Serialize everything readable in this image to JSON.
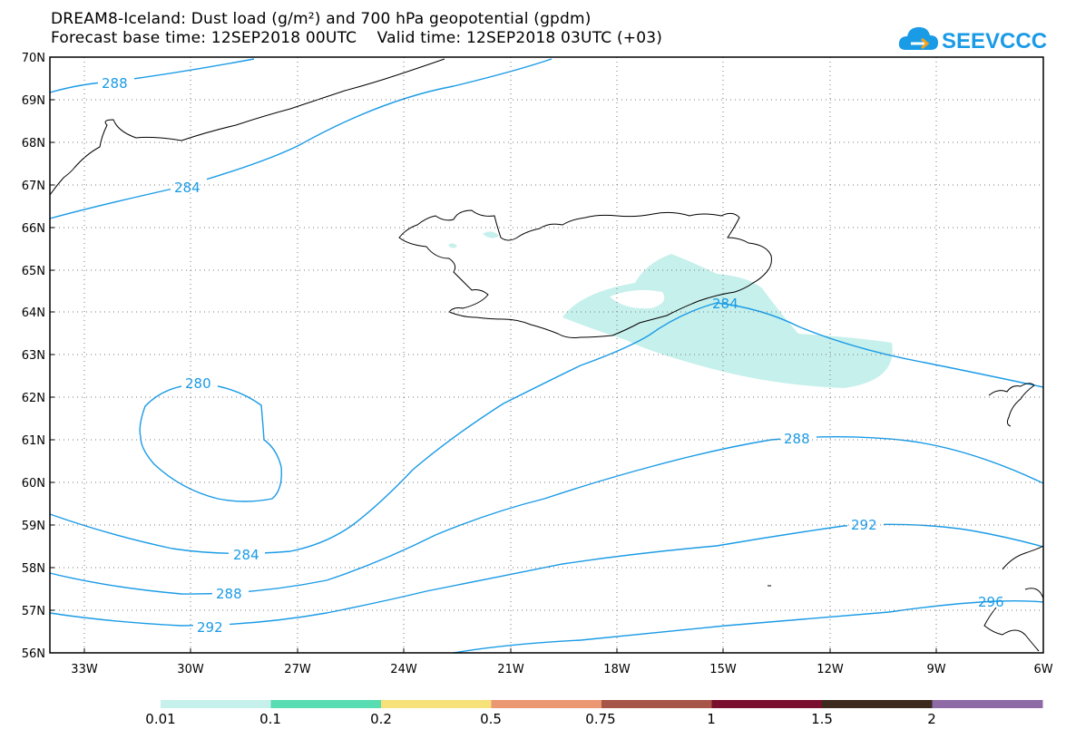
{
  "header": {
    "title_line1": "DREAM8-Iceland: Dust load (g/m²) and 700 hPa geopotential (gpdm)",
    "title_line2": "Forecast base time: 12SEP2018 00UTC    Valid time: 12SEP2018 03UTC (+03)"
  },
  "logo": {
    "text": "SEEVCCC",
    "icon": "cloud-icon",
    "color": "#1a9be6"
  },
  "map": {
    "lat_labels": [
      "70N",
      "69N",
      "68N",
      "67N",
      "66N",
      "65N",
      "64N",
      "63N",
      "62N",
      "61N",
      "60N",
      "59N",
      "58N",
      "57N",
      "56N"
    ],
    "lon_labels": [
      "33W",
      "30W",
      "27W",
      "24W",
      "21W",
      "18W",
      "15W",
      "12W",
      "9W",
      "6W"
    ],
    "contour_color": "#1a9be6",
    "dust_color": "#c6f0ec",
    "contour_labels": [
      "288",
      "284",
      "280",
      "284",
      "288",
      "292",
      "284",
      "288",
      "292",
      "296"
    ]
  },
  "colorbar": {
    "colors": [
      "#c6f0ec",
      "#58dcb2",
      "#f6e279",
      "#ea9772",
      "#a65548",
      "#7a0e2e",
      "#3b2a1d",
      "#8e6aa6"
    ],
    "labels": [
      "0.01",
      "0.1",
      "0.2",
      "0.5",
      "0.75",
      "1",
      "1.5",
      "2"
    ]
  }
}
